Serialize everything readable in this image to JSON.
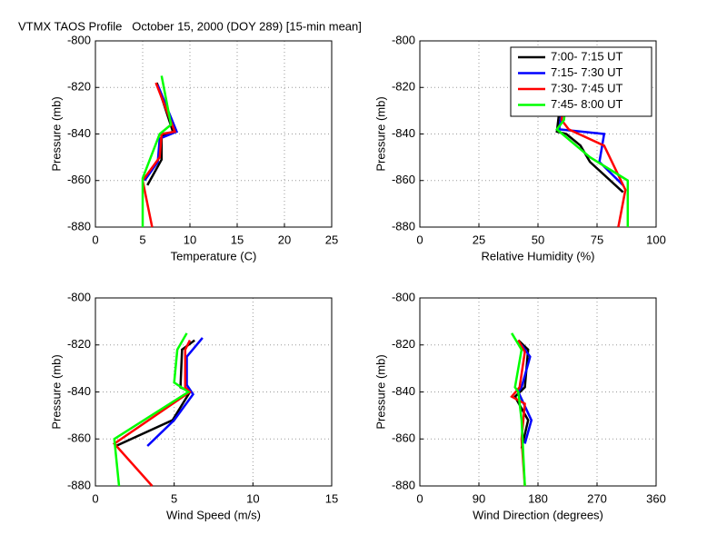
{
  "title": "VTMX TAOS Profile   October 15, 2000 (DOY 289) [15-min mean]",
  "chart_data": [
    {
      "type": "line",
      "xlabel": "Temperature (C)",
      "ylabel": "Pressure (mb)",
      "xlim": [
        0,
        25
      ],
      "xticks": [
        0,
        5,
        10,
        15,
        20,
        25
      ],
      "ylim": [
        -880,
        -800
      ],
      "yticks": [
        -800,
        -820,
        -840,
        -860,
        -880
      ],
      "grid": true,
      "series": [
        {
          "color": "#000000",
          "x": [
            6.5,
            8.2,
            7.0,
            7.0,
            5.5
          ],
          "y": [
            -818,
            -839,
            -841,
            -851,
            -862
          ]
        },
        {
          "color": "#0000ff",
          "x": [
            6.6,
            8.6,
            6.8,
            6.6,
            5.2
          ],
          "y": [
            -819,
            -839,
            -842,
            -852,
            -860
          ]
        },
        {
          "color": "#ff0000",
          "x": [
            6.4,
            8.4,
            7.0,
            6.8,
            5.0,
            6.0
          ],
          "y": [
            -818,
            -839,
            -840,
            -850,
            -860,
            -880
          ]
        },
        {
          "color": "#00ff00",
          "x": [
            7.0,
            8.0,
            6.8,
            5.0,
            5.0
          ],
          "y": [
            -815,
            -836,
            -840,
            -859,
            -880
          ]
        }
      ]
    },
    {
      "type": "line",
      "xlabel": "Relative Humidity (%)",
      "ylabel": "Pressure (mb)",
      "xlim": [
        0,
        100
      ],
      "xticks": [
        0,
        25,
        50,
        75,
        100
      ],
      "ylim": [
        -880,
        -800
      ],
      "yticks": [
        -800,
        -820,
        -840,
        -860,
        -880
      ],
      "grid": true,
      "legend": "upper right",
      "series": [
        {
          "name": "7:00- 7:15 UT",
          "color": "#000000",
          "x": [
            60,
            58,
            62,
            68,
            72,
            86
          ],
          "y": [
            -822,
            -839,
            -840,
            -845,
            -852,
            -865
          ]
        },
        {
          "name": "7:15- 7:30 UT",
          "color": "#0000ff",
          "x": [
            61,
            59,
            78,
            76,
            86
          ],
          "y": [
            -823,
            -838,
            -840,
            -852,
            -862
          ]
        },
        {
          "name": "7:30- 7:45 UT",
          "color": "#ff0000",
          "x": [
            61,
            60,
            63,
            78,
            87,
            84
          ],
          "y": [
            -820,
            -834,
            -838,
            -845,
            -864,
            -880
          ]
        },
        {
          "name": "7:45- 8:00 UT",
          "color": "#00ff00",
          "x": [
            62,
            61,
            58,
            72,
            88,
            88
          ],
          "y": [
            -825,
            -834,
            -838,
            -850,
            -860,
            -880
          ]
        }
      ]
    },
    {
      "type": "line",
      "xlabel": "Wind Speed (m/s)",
      "ylabel": "Pressure (mb)",
      "xlim": [
        0,
        15
      ],
      "xticks": [
        0,
        5,
        10,
        15
      ],
      "ylim": [
        -880,
        -800
      ],
      "yticks": [
        -800,
        -820,
        -840,
        -860,
        -880
      ],
      "grid": true,
      "series": [
        {
          "color": "#000000",
          "x": [
            6.3,
            5.5,
            5.4,
            6.0,
            4.9,
            1.3
          ],
          "y": [
            -818,
            -822,
            -838,
            -840,
            -852,
            -863
          ]
        },
        {
          "color": "#0000ff",
          "x": [
            6.8,
            5.8,
            5.8,
            6.2,
            5.0,
            3.3
          ],
          "y": [
            -817,
            -825,
            -837,
            -841,
            -852,
            -863
          ]
        },
        {
          "color": "#ff0000",
          "x": [
            6.0,
            5.7,
            5.7,
            6.0,
            1.2,
            3.6
          ],
          "y": [
            -818,
            -822,
            -838,
            -840,
            -862,
            -880
          ]
        },
        {
          "color": "#00ff00",
          "x": [
            5.8,
            5.2,
            5.0,
            5.9,
            1.2,
            1.5
          ],
          "y": [
            -815,
            -822,
            -836,
            -840,
            -860,
            -880
          ]
        }
      ]
    },
    {
      "type": "line",
      "xlabel": "Wind Direction (degrees)",
      "ylabel": "Pressure (mb)",
      "xlim": [
        0,
        360
      ],
      "xticks": [
        0,
        90,
        180,
        270,
        360
      ],
      "ylim": [
        -880,
        -800
      ],
      "yticks": [
        -800,
        -820,
        -840,
        -860,
        -880
      ],
      "grid": true,
      "series": [
        {
          "color": "#000000",
          "x": [
            150,
            165,
            160,
            145,
            165,
            155
          ],
          "y": [
            -818,
            -822,
            -838,
            -842,
            -852,
            -864
          ]
        },
        {
          "color": "#0000ff",
          "x": [
            155,
            168,
            155,
            150,
            170,
            160
          ],
          "y": [
            -820,
            -825,
            -838,
            -840,
            -852,
            -862
          ]
        },
        {
          "color": "#ff0000",
          "x": [
            150,
            160,
            152,
            140,
            160,
            155,
            160
          ],
          "y": [
            -818,
            -823,
            -838,
            -842,
            -845,
            -860,
            -880
          ]
        },
        {
          "color": "#00ff00",
          "x": [
            140,
            155,
            145,
            150,
            155,
            160
          ],
          "y": [
            -815,
            -822,
            -838,
            -840,
            -852,
            -880
          ]
        }
      ]
    }
  ]
}
